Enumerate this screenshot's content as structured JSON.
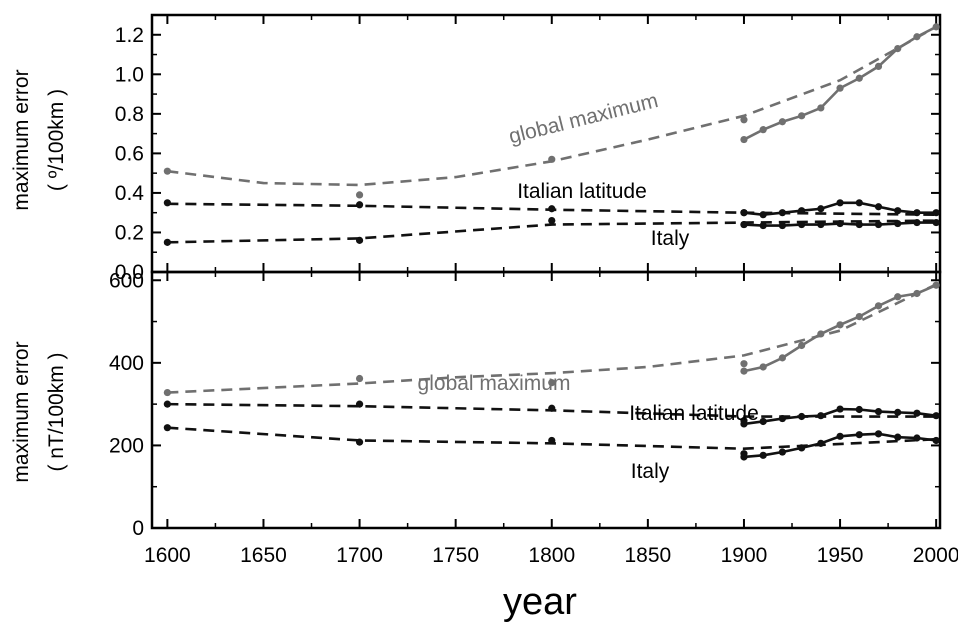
{
  "chart_data": [
    {
      "type": "line",
      "ylabel_line1": "maximum error",
      "ylabel_line2": "( º/100km )",
      "xlim": [
        1592,
        2002
      ],
      "ylim": [
        0,
        1.3
      ],
      "yticks": [
        "0.0",
        "0.2",
        "0.4",
        "0.6",
        "0.8",
        "1.0",
        "1.2"
      ],
      "annotations": [
        "global maximum",
        "Italian latitude",
        "Italy"
      ],
      "series": [
        {
          "name": "global maximum",
          "color": "#707070",
          "points_x": [
            1600,
            1700,
            1800,
            1900
          ],
          "points_y": [
            0.51,
            0.39,
            0.57,
            0.77
          ],
          "fit_x": [
            1600,
            1650,
            1700,
            1750,
            1800,
            1850,
            1900,
            1950,
            2000
          ],
          "fit_y": [
            0.51,
            0.45,
            0.44,
            0.48,
            0.56,
            0.67,
            0.79,
            0.97,
            1.24
          ],
          "detail_x": [
            1900,
            1910,
            1920,
            1930,
            1940,
            1950,
            1960,
            1970,
            1980,
            1990,
            2000
          ],
          "detail_y": [
            0.67,
            0.72,
            0.76,
            0.79,
            0.83,
            0.93,
            0.98,
            1.04,
            1.13,
            1.19,
            1.24
          ]
        },
        {
          "name": "Italian latitude",
          "color": "#111111",
          "points_x": [
            1600,
            1700,
            1800,
            1900
          ],
          "points_y": [
            0.35,
            0.34,
            0.32,
            0.3
          ],
          "fit_x": [
            1600,
            1700,
            1800,
            1900,
            2000
          ],
          "fit_y": [
            0.345,
            0.335,
            0.315,
            0.3,
            0.29
          ],
          "detail_x": [
            1900,
            1910,
            1920,
            1930,
            1940,
            1950,
            1960,
            1970,
            1980,
            1990,
            2000
          ],
          "detail_y": [
            0.3,
            0.29,
            0.3,
            0.31,
            0.32,
            0.35,
            0.35,
            0.33,
            0.31,
            0.3,
            0.3
          ]
        },
        {
          "name": "Italy",
          "color": "#111111",
          "points_x": [
            1600,
            1700,
            1800,
            1900
          ],
          "points_y": [
            0.15,
            0.16,
            0.26,
            0.24
          ],
          "fit_x": [
            1600,
            1700,
            1800,
            1900,
            2000
          ],
          "fit_y": [
            0.15,
            0.17,
            0.24,
            0.25,
            0.26
          ],
          "detail_x": [
            1900,
            1910,
            1920,
            1930,
            1940,
            1950,
            1960,
            1970,
            1980,
            1990,
            2000
          ],
          "detail_y": [
            0.24,
            0.235,
            0.235,
            0.24,
            0.24,
            0.245,
            0.24,
            0.24,
            0.245,
            0.25,
            0.25
          ]
        }
      ]
    },
    {
      "type": "line",
      "ylabel_line1": "maximum error",
      "ylabel_line2": "( nT/100km )",
      "xlabel": "year",
      "xlim": [
        1592,
        2002
      ],
      "ylim": [
        0,
        620
      ],
      "yticks": [
        "0",
        "200",
        "400",
        "600"
      ],
      "xticks": [
        "1600",
        "1650",
        "1700",
        "1750",
        "1800",
        "1850",
        "1900",
        "1950",
        "2000"
      ],
      "annotations": [
        "global maximum",
        "Italian latitude",
        "Italy"
      ],
      "series": [
        {
          "name": "global maximum",
          "color": "#707070",
          "points_x": [
            1600,
            1700,
            1800,
            1900
          ],
          "points_y": [
            328,
            362,
            352,
            398
          ],
          "fit_x": [
            1600,
            1700,
            1750,
            1800,
            1850,
            1900,
            1950,
            2000
          ],
          "fit_y": [
            328,
            350,
            365,
            375,
            390,
            418,
            478,
            590
          ],
          "detail_x": [
            1900,
            1910,
            1920,
            1930,
            1940,
            1950,
            1960,
            1970,
            1980,
            1990,
            2000
          ],
          "detail_y": [
            380,
            390,
            412,
            442,
            470,
            492,
            512,
            538,
            560,
            568,
            588
          ]
        },
        {
          "name": "Italian latitude",
          "color": "#111111",
          "points_x": [
            1600,
            1700,
            1800,
            1900
          ],
          "points_y": [
            300,
            300,
            290,
            260
          ],
          "fit_x": [
            1600,
            1700,
            1800,
            1900,
            2000
          ],
          "fit_y": [
            300,
            295,
            285,
            270,
            270
          ],
          "detail_x": [
            1900,
            1910,
            1920,
            1930,
            1940,
            1950,
            1960,
            1970,
            1980,
            1990,
            2000
          ],
          "detail_y": [
            252,
            258,
            265,
            270,
            272,
            288,
            287,
            282,
            280,
            278,
            272
          ]
        },
        {
          "name": "Italy",
          "color": "#111111",
          "points_x": [
            1600,
            1700,
            1800,
            1900
          ],
          "points_y": [
            243,
            208,
            212,
            180
          ],
          "fit_x": [
            1600,
            1700,
            1800,
            1900,
            2000
          ],
          "fit_y": [
            243,
            212,
            205,
            192,
            215
          ],
          "detail_x": [
            1900,
            1910,
            1920,
            1930,
            1940,
            1950,
            1960,
            1970,
            1980,
            1990,
            2000
          ],
          "detail_y": [
            172,
            176,
            184,
            194,
            205,
            222,
            226,
            228,
            220,
            218,
            212
          ]
        }
      ]
    }
  ]
}
